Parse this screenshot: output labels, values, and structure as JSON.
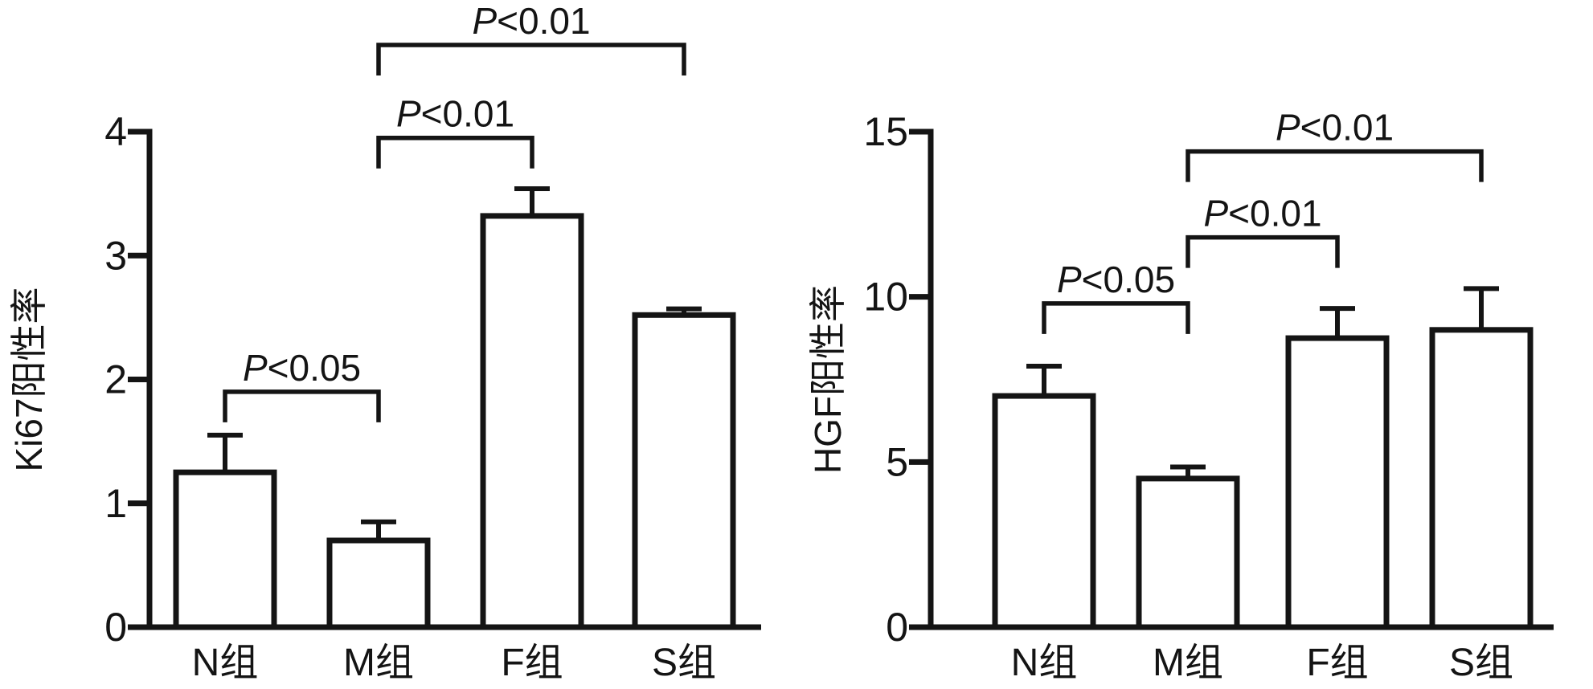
{
  "figure": {
    "background_color": "#ffffff",
    "ink_color": "#141414"
  },
  "chart_data": [
    {
      "id": "ki67-chart",
      "type": "bar",
      "title": "",
      "xlabel": "",
      "ylabel": "Ki67阳性率",
      "categories": [
        "N组",
        "M组",
        "F组",
        "S组"
      ],
      "values": [
        1.25,
        0.7,
        3.32,
        2.52
      ],
      "errors": [
        0.3,
        0.15,
        0.22,
        0.05
      ],
      "ylim": [
        0,
        4
      ],
      "yticks": [
        0,
        1,
        2,
        3,
        4
      ],
      "bar_fill": "#ffffff",
      "grid": false,
      "legend": false,
      "brackets": [
        {
          "label": "P<0.05",
          "from": 0,
          "to": 1,
          "y": 1.9
        },
        {
          "label": "P<0.01",
          "from": 1,
          "to": 2,
          "y": 3.95
        },
        {
          "label": "P<0.01",
          "from": 1,
          "to": 3,
          "y": 4.7
        }
      ]
    },
    {
      "id": "hgf-chart",
      "type": "bar",
      "title": "",
      "xlabel": "",
      "ylabel": "HGF阳性率",
      "categories": [
        "N组",
        "M组",
        "F组",
        "S组"
      ],
      "values": [
        7.0,
        4.5,
        8.75,
        9.0
      ],
      "errors": [
        0.9,
        0.35,
        0.9,
        1.25
      ],
      "ylim": [
        0,
        15
      ],
      "yticks": [
        0,
        5,
        10,
        15
      ],
      "bar_fill": "#ffffff",
      "grid": false,
      "legend": false,
      "brackets": [
        {
          "label": "P<0.05",
          "from": 0,
          "to": 1,
          "y": 9.8
        },
        {
          "label": "P<0.01",
          "from": 1,
          "to": 2,
          "y": 11.8
        },
        {
          "label": "P<0.01",
          "from": 1,
          "to": 3,
          "y": 14.4
        }
      ]
    }
  ]
}
